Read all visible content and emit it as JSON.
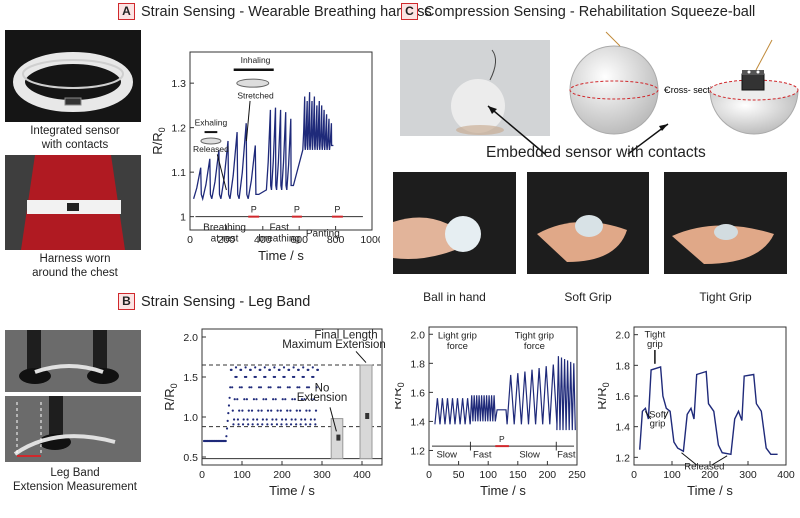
{
  "panels": {
    "a": {
      "tag": "A",
      "title": "Strain Sensing - Wearable Breathing harness",
      "caption_top": [
        "Integrated sensor",
        "with contacts"
      ],
      "caption_bottom": [
        "Harness worn",
        "around the chest"
      ]
    },
    "b": {
      "tag": "B",
      "title": "Strain Sensing - Leg Band",
      "caption": [
        "Leg Band",
        "Extension Measurement"
      ]
    },
    "c": {
      "tag": "C",
      "title": "Compression Sensing - Rehabilitation Squeeze-ball",
      "cross_section": "Cross- section",
      "embedded": "Embedded sensor with contacts",
      "grips": [
        "Ball in hand",
        "Soft Grip",
        "Tight Grip"
      ]
    }
  },
  "chart_data": [
    {
      "type": "line",
      "id": "breathing",
      "ylabel": "R/R0",
      "xlabel": "Time / s",
      "xlim": [
        0,
        1000
      ],
      "ylim": [
        0.97,
        1.37
      ],
      "xticks": [
        "0",
        "200",
        "400",
        "600",
        "800",
        "1000"
      ],
      "yticks": [
        "1",
        "1.1",
        "1.2",
        "1.3"
      ],
      "annotations": [
        "Exhaling",
        "Released",
        "Inhaling",
        "Stretched",
        "Breathing",
        "at rest",
        "Fast",
        "breathing",
        "Panting",
        "P",
        "P",
        "P"
      ],
      "segments": [
        {
          "label": "rest",
          "x": [
            20,
            370
          ],
          "breaths": 7,
          "peaks": [
            1.11,
            1.13,
            1.15,
            1.17,
            1.19,
            1.21,
            1.16
          ],
          "baseline": 1.04
        },
        {
          "label": "fast",
          "x": [
            420,
            560
          ],
          "breaths": 5,
          "peaks": [
            1.24,
            1.245,
            1.24,
            1.235,
            1.22
          ],
          "baseline": 1.06
        },
        {
          "label": "panting",
          "x": [
            620,
            780
          ],
          "breaths": 12,
          "peaks": [
            1.27,
            1.26,
            1.28,
            1.26,
            1.27,
            1.25,
            1.26,
            1.25,
            1.24,
            1.23,
            1.22,
            1.21
          ],
          "baseline": 1.15
        }
      ]
    },
    {
      "type": "scatter",
      "id": "leg-band",
      "ylabel": "R/R0",
      "xlabel": "Time / s",
      "xlim": [
        0,
        450
      ],
      "ylim": [
        0.4,
        2.1
      ],
      "xticks": [
        "0",
        "100",
        "200",
        "300",
        "400"
      ],
      "yticks": [
        "0.5",
        "1.0",
        "1.5",
        "2.0"
      ],
      "annotations": [
        "Final Length",
        "Maximum Extension",
        "No",
        "Extension"
      ],
      "reference_lines": [
        1.65,
        0.88
      ],
      "points_desc": "baseline 0.7 to t=60, then oscillation between 0.9 and 1.62 to t=290"
    },
    {
      "type": "line",
      "id": "grip-force",
      "ylabel": "R/R0",
      "xlabel": "Time / s",
      "xlim": [
        0,
        250
      ],
      "ylim": [
        1.1,
        2.05
      ],
      "xticks": [
        "0",
        "50",
        "100",
        "150",
        "200",
        "250"
      ],
      "yticks": [
        "1.2",
        "1.4",
        "1.6",
        "1.8",
        "2.0"
      ],
      "annotations": [
        "Light grip",
        "force",
        "Tight grip",
        "force",
        "Slow",
        "Fast",
        "P",
        "Slow",
        "Fast"
      ]
    },
    {
      "type": "line",
      "id": "grip-level",
      "ylabel": "R/R0",
      "xlabel": "Time / s",
      "xlim": [
        0,
        400
      ],
      "ylim": [
        1.15,
        2.05
      ],
      "xticks": [
        "0",
        "100",
        "200",
        "300",
        "400"
      ],
      "yticks": [
        "1.2",
        "1.4",
        "1.6",
        "1.8",
        "2.0"
      ],
      "annotations": [
        "Tight",
        "grip",
        "Soft",
        "grip",
        "Released"
      ]
    }
  ]
}
